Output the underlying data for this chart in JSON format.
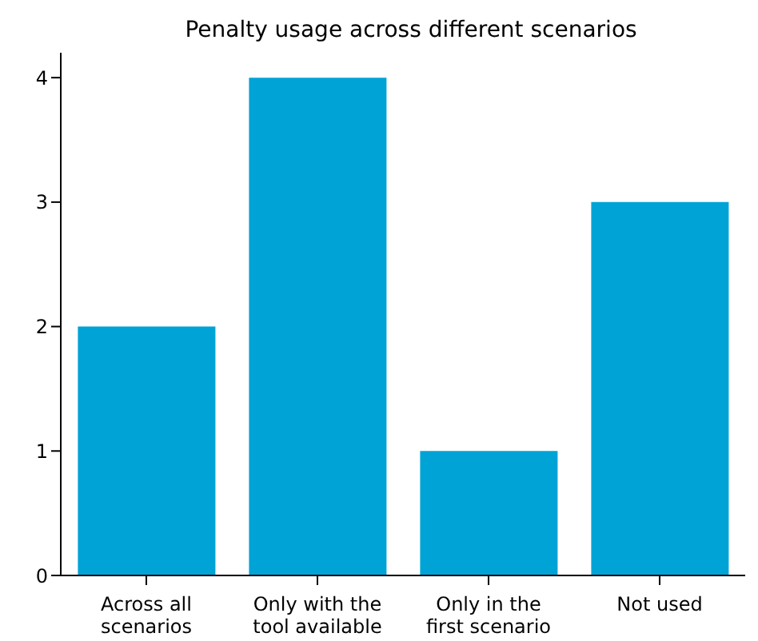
{
  "chart_data": {
    "type": "bar",
    "title": "Penalty usage across different scenarios",
    "categories": [
      "Across all scenarios",
      "Only with the tool available",
      "Only in the first scenario",
      "Not used"
    ],
    "values": [
      2,
      4,
      1,
      3
    ],
    "color": "#00a3d6",
    "ylim": [
      0,
      4.2
    ],
    "yticks": [
      0,
      1,
      2,
      3,
      4
    ]
  }
}
